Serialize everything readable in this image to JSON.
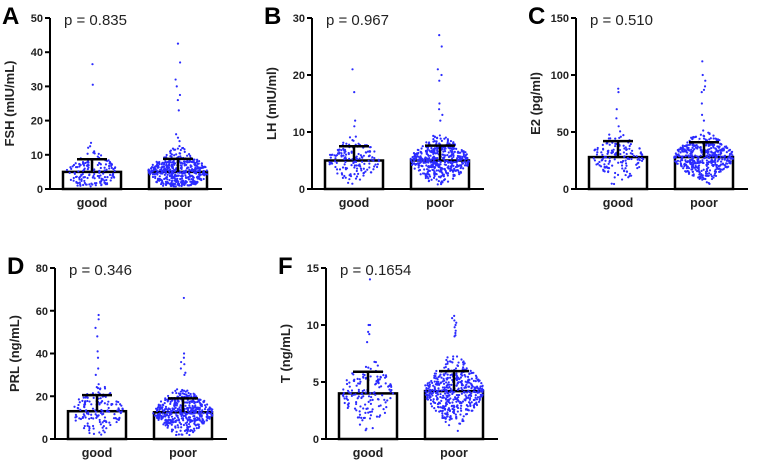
{
  "chart_data": [
    {
      "type": "bar",
      "letter": "A",
      "ylabel": "FSH (mIU/mL)",
      "annotation": "p = 0.835",
      "ylim": [
        0,
        50
      ],
      "yticks": [
        0,
        10,
        20,
        30,
        40,
        50
      ],
      "categories": [
        "good",
        "poor"
      ],
      "means": [
        5.0,
        5.0
      ],
      "error_top": [
        8.7,
        8.8
      ],
      "outliers": [
        [
          36.5,
          30.5,
          13.5,
          12.5,
          11
        ],
        [
          42.5,
          37,
          32,
          30,
          27.5,
          26,
          23,
          16,
          15,
          14,
          12,
          11.5
        ]
      ]
    },
    {
      "type": "bar",
      "letter": "B",
      "ylabel": "LH (mIU/ml)",
      "annotation": "p = 0.967",
      "ylim": [
        0,
        30
      ],
      "yticks": [
        0,
        10,
        20,
        30
      ],
      "categories": [
        "good",
        "poor"
      ],
      "means": [
        5.0,
        5.0
      ],
      "error_top": [
        7.5,
        7.6
      ],
      "outliers": [
        [
          21,
          17,
          12,
          11
        ],
        [
          27,
          25,
          21,
          20,
          19,
          15,
          14,
          13,
          12
        ]
      ]
    },
    {
      "type": "bar",
      "letter": "C",
      "ylabel": "E2 (pg/ml)",
      "annotation": "p = 0.510",
      "ylim": [
        0,
        150
      ],
      "yticks": [
        0,
        50,
        100,
        150
      ],
      "categories": [
        "good",
        "poor"
      ],
      "means": [
        28,
        28
      ],
      "error_top": [
        42,
        41
      ],
      "outliers": [
        [
          88,
          85,
          70,
          62,
          55
        ],
        [
          112,
          100,
          95,
          90,
          87,
          85,
          75,
          65,
          60
        ]
      ]
    },
    {
      "type": "bar",
      "letter": "D",
      "ylabel": "PRL (ng/mL)",
      "annotation": "p = 0.346",
      "ylim": [
        0,
        80
      ],
      "yticks": [
        0,
        20,
        40,
        60,
        80
      ],
      "categories": [
        "good",
        "poor"
      ],
      "means": [
        13,
        12.5
      ],
      "error_top": [
        20.5,
        19
      ],
      "outliers": [
        [
          58,
          56,
          52,
          48,
          41,
          38,
          33,
          30
        ],
        [
          66,
          40,
          38,
          36,
          35,
          33,
          31,
          30
        ]
      ]
    },
    {
      "type": "bar",
      "letter": "F",
      "ylabel": "T (ng/mL)",
      "annotation": "p = 0.1654",
      "ylim": [
        0,
        15
      ],
      "yticks": [
        0,
        5,
        10,
        15
      ],
      "categories": [
        "good",
        "poor"
      ],
      "means": [
        4.0,
        4.2
      ],
      "error_top": [
        5.9,
        5.95
      ],
      "outliers": [
        [
          14,
          10,
          10,
          9.4,
          9.2,
          8.5
        ],
        [
          10.8,
          10.6,
          10.4,
          10.2,
          10,
          9.8,
          9.5,
          9.3,
          9.1,
          9
        ]
      ]
    }
  ],
  "colors": {
    "points": "#2b2bff",
    "bar_fill": "#ffffff",
    "bar_stroke": "#000000"
  }
}
